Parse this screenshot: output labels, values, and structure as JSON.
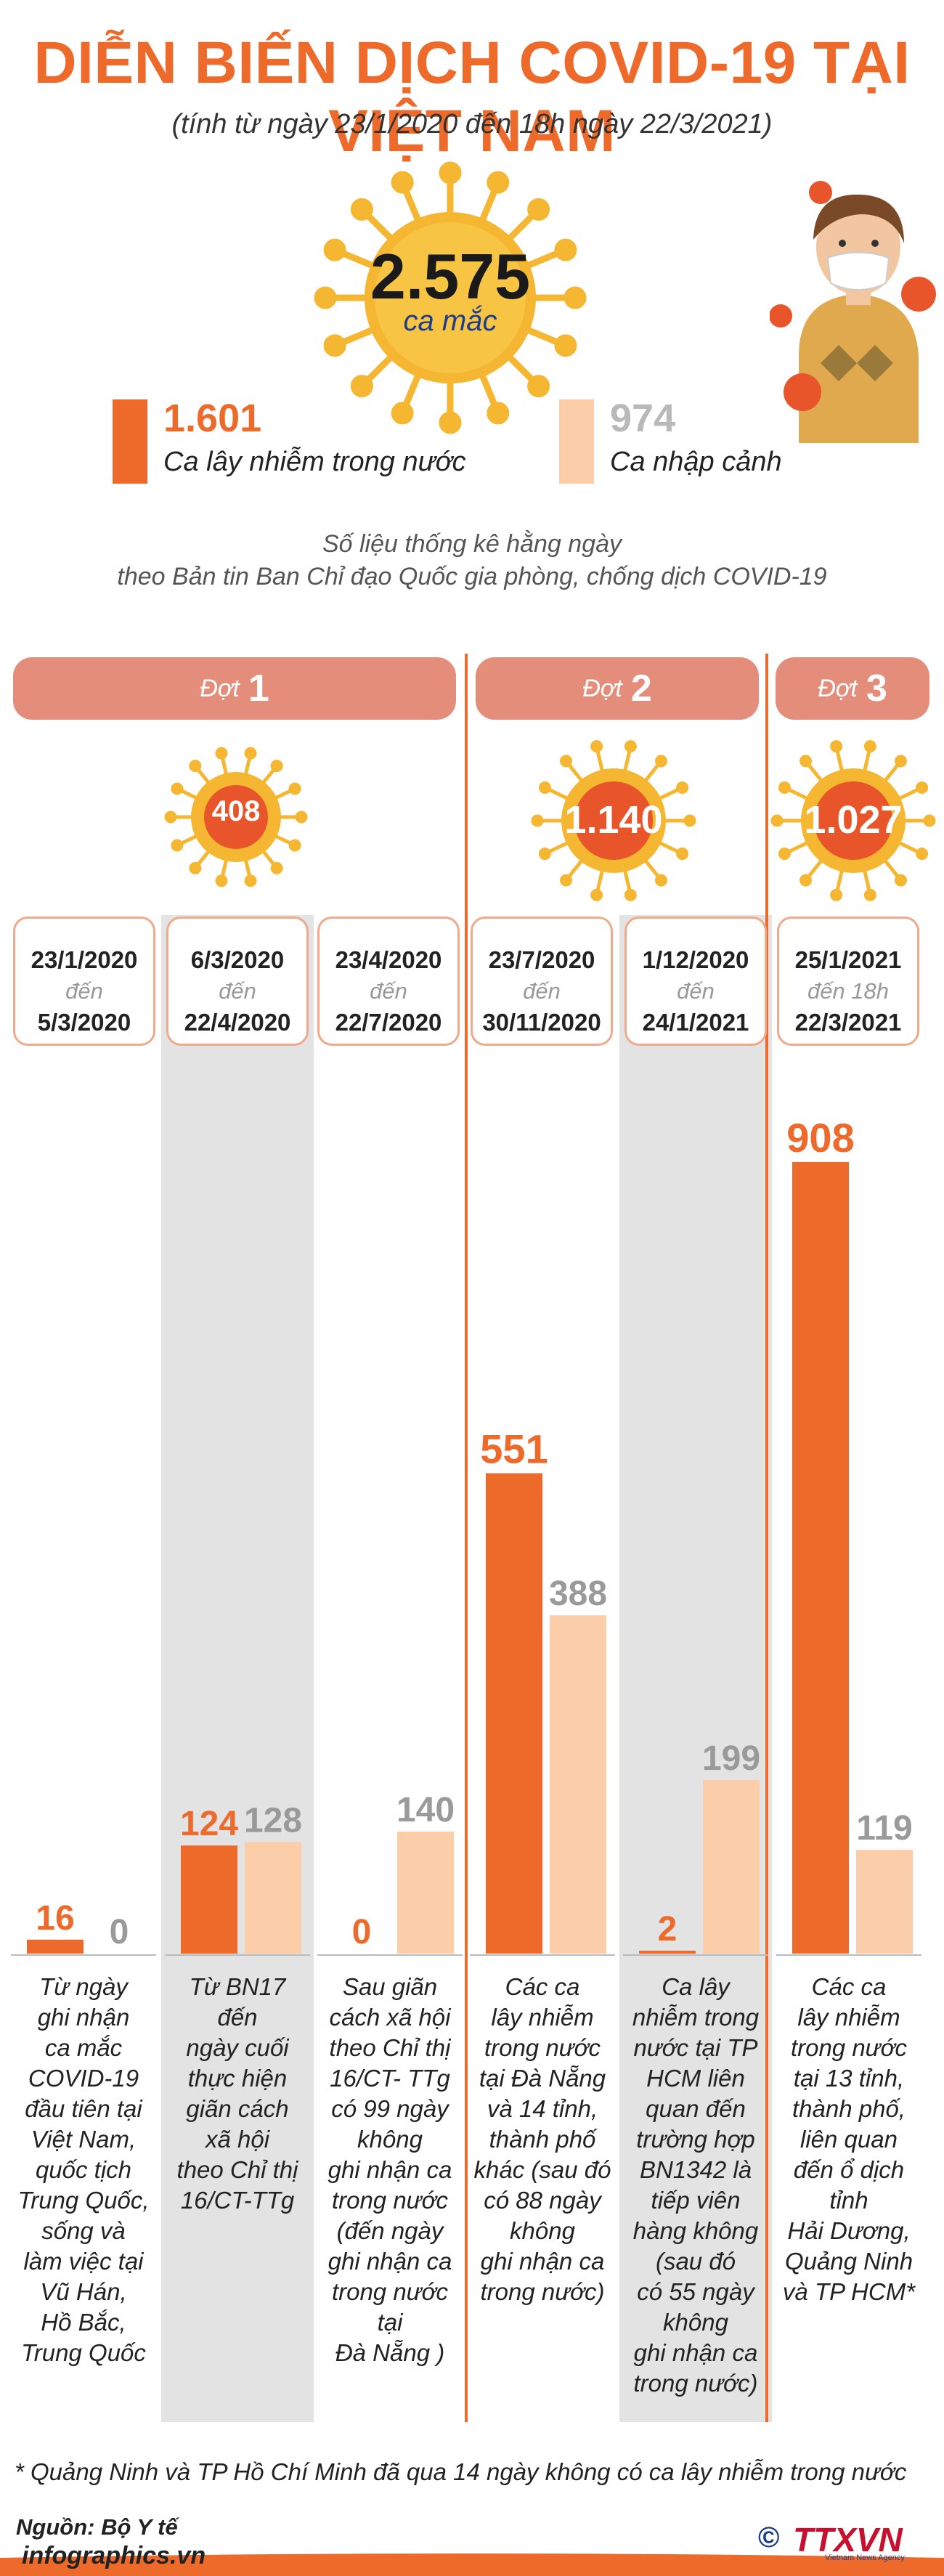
{
  "header": {
    "title": "DIỄN BIẾN DỊCH COVID-19 TẠI VIỆT NAM",
    "subtitle": "(tính từ ngày 23/1/2020 đến 18h ngày 22/3/2021)"
  },
  "total": {
    "value": "2.575",
    "label": "ca mắc"
  },
  "legend": [
    {
      "value": "1.601",
      "label": "Ca lây nhiễm trong nước",
      "color": "#ee6a2b"
    },
    {
      "value": "974",
      "label": "Ca nhập cảnh",
      "color": "#fbcda8"
    }
  ],
  "source_note": {
    "line1": "Số liệu thống kê hằng ngày",
    "line2": "theo Bản tin Ban Chỉ đạo Quốc gia phòng, chống dịch COVID-19"
  },
  "waves": [
    {
      "word": "Đợt",
      "num": "1",
      "total": "408"
    },
    {
      "word": "Đợt",
      "num": "2",
      "total": "1.140"
    },
    {
      "word": "Đợt",
      "num": "3",
      "total": "1.027"
    }
  ],
  "periods": [
    {
      "from": "23/1/2020",
      "mid": "đến",
      "to": "5/3/2020"
    },
    {
      "from": "6/3/2020",
      "mid": "đến",
      "to": "22/4/2020"
    },
    {
      "from": "23/4/2020",
      "mid": "đến",
      "to": "22/7/2020"
    },
    {
      "from": "23/7/2020",
      "mid": "đến",
      "to": "30/11/2020"
    },
    {
      "from": "1/12/2020",
      "mid": "đến",
      "to": "24/1/2021"
    },
    {
      "from": "25/1/2021",
      "mid": "đến 18h",
      "to": "22/3/2021"
    }
  ],
  "descriptions": [
    [
      "Từ ngày",
      "ghi nhận",
      "ca mắc",
      "COVID-19",
      "đầu tiên tại",
      "Việt Nam,",
      "quốc tịch",
      "Trung Quốc,",
      "sống và",
      "làm việc tại",
      "Vũ Hán,",
      "Hồ Bắc,",
      "Trung Quốc"
    ],
    [
      "Từ BN17",
      "đến",
      "ngày cuối",
      "thực hiện",
      "giãn cách",
      "xã hội",
      "theo Chỉ thị",
      "16/CT-TTg"
    ],
    [
      "Sau giãn",
      "cách xã hội",
      "theo Chỉ thị",
      "16/CT- TTg",
      "có 99 ngày",
      "không",
      "ghi nhận ca",
      "trong nước",
      "(đến ngày",
      "ghi nhận ca",
      "trong nước",
      "tại",
      "Đà Nẵng )"
    ],
    [
      "Các ca",
      "lây nhiễm",
      "trong nước",
      "tại Đà Nẵng",
      "và 14 tỉnh,",
      "thành phố",
      "khác (sau đó",
      "có  88 ngày",
      "không",
      "ghi nhận ca",
      "trong nước)"
    ],
    [
      "Ca lây",
      "nhiễm trong",
      "nước tại TP",
      "HCM liên",
      "quan đến",
      "trường hợp",
      "BN1342 là",
      "tiếp viên",
      "hàng không",
      "(sau đó",
      "có  55 ngày",
      "không",
      "ghi nhận ca",
      "trong nước)"
    ],
    [
      "Các ca",
      "lây nhiễm",
      "trong nước",
      "tại 13 tỉnh,",
      "thành phố,",
      "liên quan",
      "đến ổ dịch",
      "tỉnh",
      "Hải Dương,",
      "Quảng Ninh",
      "và TP HCM*"
    ]
  ],
  "chart_data": {
    "type": "bar",
    "categories": [
      "23/1/2020 - 5/3/2020",
      "6/3/2020 - 22/4/2020",
      "23/4/2020 - 22/7/2020",
      "23/7/2020 - 30/11/2020",
      "1/12/2020 - 24/1/2021",
      "25/1/2021 - 22/3/2021"
    ],
    "series": [
      {
        "name": "Ca lây nhiễm trong nước",
        "values": [
          16,
          124,
          0,
          551,
          2,
          908
        ],
        "color": "#ee6a2b"
      },
      {
        "name": "Ca nhập cảnh",
        "values": [
          0,
          128,
          140,
          388,
          199,
          119
        ],
        "color": "#fbcda8"
      }
    ],
    "ylim": [
      0,
      908
    ]
  },
  "footnote": "* Quảng Ninh và TP Hồ Chí Minh đã qua 14 ngày không có ca lây nhiễm trong nước",
  "credit": {
    "source": "Nguồn: Bộ Y tế",
    "site": "infographics.vn",
    "logo": "TTXVN",
    "logo_sub": "Vietnam News Agency",
    "copyright": "©"
  },
  "colors": {
    "accent": "#ee6a2b",
    "light": "#fbcda8",
    "pill": "#e48d7b",
    "band": "#e3e3e3",
    "virus": "#f5b731",
    "virus_red": "#e8552a"
  }
}
